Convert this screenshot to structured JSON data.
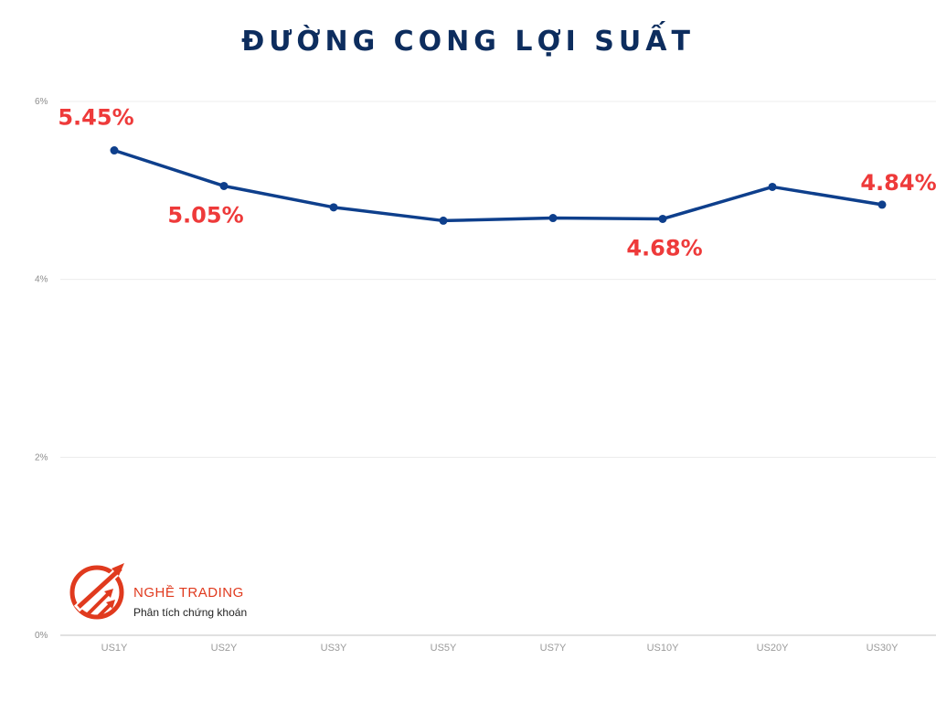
{
  "title": "ĐƯỜNG CONG LỢI SUẤT",
  "brand": {
    "name": "NGHỀ TRADING",
    "tagline": "Phân tích chứng khoán",
    "color": "#e03a1e"
  },
  "colors": {
    "line": "#0e3f8c",
    "label": "#ee3a3a",
    "title": "#0d2d5e"
  },
  "chart_data": {
    "type": "line",
    "title": "ĐƯỜNG CONG LỢI SUẤT",
    "xlabel": "",
    "ylabel": "",
    "categories": [
      "US1Y",
      "US2Y",
      "US3Y",
      "US5Y",
      "US7Y",
      "US10Y",
      "US20Y",
      "US30Y"
    ],
    "series": [
      {
        "values": [
          5.45,
          5.05,
          4.81,
          4.66,
          4.69,
          4.68,
          5.04,
          4.84
        ]
      }
    ],
    "data_labels": [
      {
        "index": 0,
        "text": "5.45%"
      },
      {
        "index": 1,
        "text": "5.05%"
      },
      {
        "index": 5,
        "text": "4.68%"
      },
      {
        "index": 7,
        "text": "4.84%"
      }
    ],
    "ylim": [
      0,
      6
    ],
    "yticks": [
      0,
      2,
      4,
      6
    ],
    "ytick_labels": [
      "0%",
      "2%",
      "4%",
      "6%"
    ],
    "grid": true,
    "legend": "none"
  }
}
